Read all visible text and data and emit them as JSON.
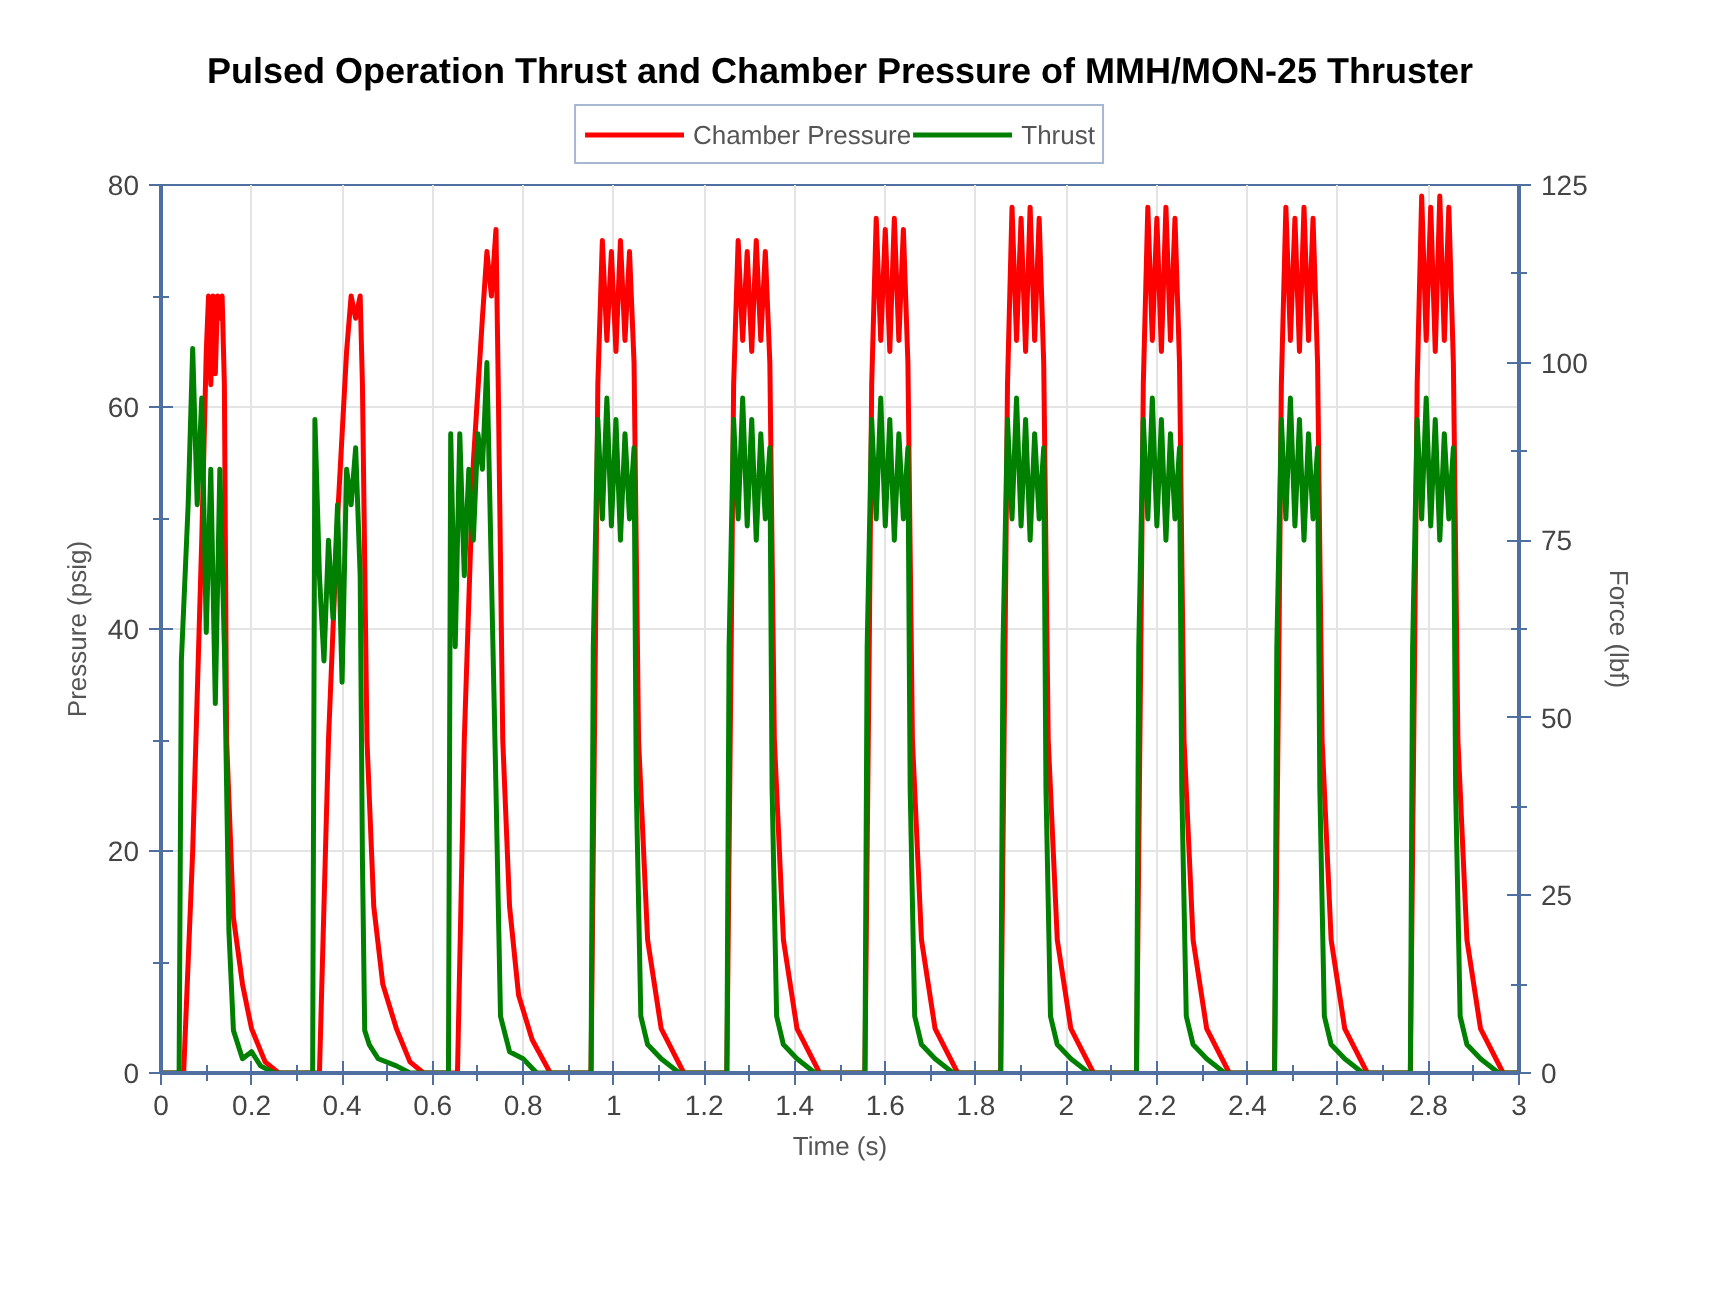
{
  "chart_data": {
    "type": "line",
    "title": "Pulsed Operation Thrust and Chamber Pressure of MMH/MON-25 Thruster",
    "xlabel": "Time (s)",
    "ylabel": "Pressure (psig)",
    "y2label": "Force (lbf)",
    "xlim": [
      0,
      3
    ],
    "xticks": [
      0,
      0.2,
      0.4,
      0.6,
      0.8,
      1,
      1.2,
      1.4,
      1.6,
      1.8,
      2,
      2.2,
      2.4,
      2.6,
      2.8,
      3
    ],
    "ylim": [
      0,
      80
    ],
    "yticks": [
      0,
      20,
      40,
      60,
      80
    ],
    "y2lim": [
      0,
      125
    ],
    "y2ticks": [
      0,
      25,
      50,
      75,
      100,
      125
    ],
    "grid": true,
    "legend": "top",
    "marker": "none",
    "line_style": "solid",
    "series": [
      {
        "name": "Chamber Pressure",
        "color": "#ff0000",
        "x": [
          0,
          0.05,
          0.07,
          0.09,
          0.1,
          0.105,
          0.11,
          0.115,
          0.12,
          0.125,
          0.13,
          0.135,
          0.14,
          0.145,
          0.16,
          0.18,
          0.2,
          0.23,
          0.26,
          0.35,
          0.37,
          0.39,
          0.41,
          0.42,
          0.43,
          0.44,
          0.445,
          0.455,
          0.47,
          0.49,
          0.52,
          0.55,
          0.58,
          0.655,
          0.67,
          0.69,
          0.71,
          0.72,
          0.73,
          0.74,
          0.745,
          0.755,
          0.77,
          0.79,
          0.82,
          0.86,
          0.95,
          0.96,
          0.965,
          0.975,
          0.985,
          0.995,
          1.005,
          1.015,
          1.025,
          1.035,
          1.045,
          1.055,
          1.075,
          1.105,
          1.155,
          1.25,
          1.26,
          1.265,
          1.275,
          1.285,
          1.295,
          1.305,
          1.315,
          1.325,
          1.335,
          1.345,
          1.355,
          1.375,
          1.405,
          1.455,
          1.555,
          1.565,
          1.57,
          1.58,
          1.59,
          1.6,
          1.61,
          1.62,
          1.63,
          1.64,
          1.65,
          1.66,
          1.68,
          1.71,
          1.76,
          1.855,
          1.865,
          1.87,
          1.88,
          1.89,
          1.9,
          1.91,
          1.92,
          1.93,
          1.94,
          1.95,
          1.96,
          1.98,
          2.01,
          2.06,
          2.155,
          2.165,
          2.17,
          2.18,
          2.19,
          2.2,
          2.21,
          2.22,
          2.23,
          2.24,
          2.25,
          2.26,
          2.28,
          2.31,
          2.36,
          2.46,
          2.47,
          2.475,
          2.485,
          2.495,
          2.505,
          2.515,
          2.525,
          2.535,
          2.545,
          2.555,
          2.565,
          2.585,
          2.615,
          2.665,
          2.76,
          2.77,
          2.775,
          2.785,
          2.795,
          2.805,
          2.815,
          2.825,
          2.835,
          2.845,
          2.855,
          2.865,
          2.885,
          2.915,
          2.965,
          3
        ],
        "values": [
          0,
          0,
          20,
          48,
          65,
          70,
          62,
          70,
          63,
          70,
          68,
          70,
          62,
          30,
          14,
          8,
          4,
          1,
          0,
          0,
          30,
          50,
          65,
          70,
          68,
          70,
          62,
          30,
          15,
          8,
          4,
          1,
          0,
          0,
          30,
          55,
          68,
          74,
          70,
          76,
          62,
          30,
          15,
          7,
          3,
          0,
          0,
          40,
          62,
          75,
          66,
          74,
          65,
          75,
          66,
          74,
          64,
          30,
          12,
          4,
          0,
          0,
          40,
          62,
          75,
          66,
          74,
          65,
          75,
          66,
          74,
          64,
          30,
          12,
          4,
          0,
          0,
          40,
          62,
          77,
          66,
          76,
          65,
          77,
          66,
          76,
          64,
          30,
          12,
          4,
          0,
          0,
          40,
          62,
          78,
          66,
          77,
          65,
          78,
          66,
          77,
          64,
          30,
          12,
          4,
          0,
          0,
          40,
          62,
          78,
          66,
          77,
          65,
          78,
          66,
          77,
          64,
          30,
          12,
          4,
          0,
          0,
          40,
          62,
          78,
          66,
          77,
          65,
          78,
          66,
          77,
          64,
          30,
          12,
          4,
          0,
          0,
          40,
          62,
          79,
          66,
          78,
          65,
          79,
          66,
          78,
          64,
          30,
          12,
          4,
          0,
          0
        ]
      },
      {
        "name": "Thrust",
        "color": "#008000",
        "axis": "y2",
        "x": [
          0,
          0.04,
          0.045,
          0.06,
          0.07,
          0.08,
          0.09,
          0.1,
          0.11,
          0.12,
          0.13,
          0.14,
          0.15,
          0.16,
          0.18,
          0.2,
          0.22,
          0.25,
          0.335,
          0.34,
          0.35,
          0.36,
          0.37,
          0.38,
          0.39,
          0.4,
          0.41,
          0.42,
          0.43,
          0.44,
          0.445,
          0.45,
          0.46,
          0.48,
          0.52,
          0.55,
          0.635,
          0.64,
          0.65,
          0.66,
          0.67,
          0.68,
          0.69,
          0.7,
          0.71,
          0.72,
          0.73,
          0.74,
          0.75,
          0.77,
          0.8,
          0.83,
          0.95,
          0.955,
          0.965,
          0.975,
          0.985,
          0.995,
          1.005,
          1.015,
          1.025,
          1.035,
          1.045,
          1.05,
          1.06,
          1.075,
          1.105,
          1.145,
          1.25,
          1.255,
          1.265,
          1.275,
          1.285,
          1.295,
          1.305,
          1.315,
          1.325,
          1.335,
          1.345,
          1.35,
          1.36,
          1.375,
          1.405,
          1.445,
          1.555,
          1.56,
          1.57,
          1.58,
          1.59,
          1.6,
          1.61,
          1.62,
          1.63,
          1.64,
          1.65,
          1.655,
          1.665,
          1.68,
          1.71,
          1.75,
          1.855,
          1.86,
          1.87,
          1.88,
          1.89,
          1.9,
          1.91,
          1.92,
          1.93,
          1.94,
          1.95,
          1.955,
          1.965,
          1.98,
          2.01,
          2.05,
          2.155,
          2.16,
          2.17,
          2.18,
          2.19,
          2.2,
          2.21,
          2.22,
          2.23,
          2.24,
          2.25,
          2.255,
          2.265,
          2.28,
          2.31,
          2.35,
          2.46,
          2.465,
          2.475,
          2.485,
          2.495,
          2.505,
          2.515,
          2.525,
          2.535,
          2.545,
          2.555,
          2.56,
          2.57,
          2.585,
          2.615,
          2.655,
          2.76,
          2.765,
          2.775,
          2.785,
          2.795,
          2.805,
          2.815,
          2.825,
          2.835,
          2.845,
          2.855,
          2.86,
          2.87,
          2.885,
          2.915,
          2.955,
          3
        ],
        "values": [
          0,
          0,
          58,
          80,
          102,
          80,
          95,
          62,
          85,
          52,
          85,
          60,
          20,
          6,
          2,
          3,
          1,
          0,
          0,
          92,
          70,
          58,
          75,
          64,
          80,
          55,
          85,
          80,
          88,
          70,
          30,
          6,
          4,
          2,
          1,
          0,
          0,
          90,
          60,
          90,
          70,
          85,
          75,
          90,
          85,
          100,
          70,
          40,
          8,
          3,
          2,
          0,
          0,
          60,
          92,
          78,
          95,
          77,
          92,
          75,
          90,
          78,
          88,
          40,
          8,
          4,
          2,
          0,
          0,
          60,
          92,
          78,
          95,
          77,
          92,
          75,
          90,
          78,
          88,
          40,
          8,
          4,
          2,
          0,
          0,
          60,
          92,
          78,
          95,
          77,
          92,
          75,
          90,
          78,
          88,
          40,
          8,
          4,
          2,
          0,
          0,
          60,
          92,
          78,
          95,
          77,
          92,
          75,
          90,
          78,
          88,
          40,
          8,
          4,
          2,
          0,
          0,
          60,
          92,
          78,
          95,
          77,
          92,
          75,
          90,
          78,
          88,
          40,
          8,
          4,
          2,
          0,
          0,
          60,
          92,
          78,
          95,
          77,
          92,
          75,
          90,
          78,
          88,
          40,
          8,
          4,
          2,
          0,
          0,
          60,
          92,
          78,
          95,
          77,
          92,
          75,
          90,
          78,
          88,
          40,
          8,
          4,
          2,
          0,
          0
        ]
      }
    ]
  }
}
